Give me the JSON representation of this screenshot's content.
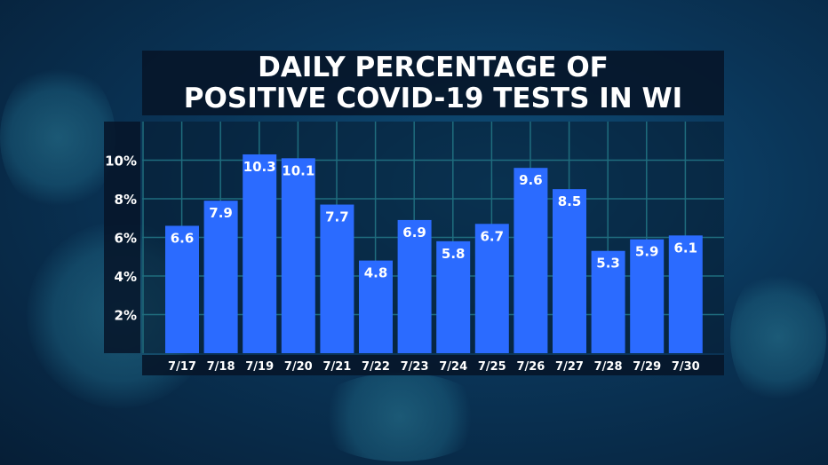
{
  "chart_data": {
    "type": "bar",
    "title_line1": "DAILY PERCENTAGE OF",
    "title_line2": "POSITIVE COVID-19 TESTS IN WI",
    "categories": [
      "7/17",
      "7/18",
      "7/19",
      "7/20",
      "7/21",
      "7/22",
      "7/23",
      "7/24",
      "7/25",
      "7/26",
      "7/27",
      "7/28",
      "7/29",
      "7/30"
    ],
    "values": [
      6.6,
      7.9,
      10.3,
      10.1,
      7.7,
      4.8,
      6.9,
      5.8,
      6.7,
      9.6,
      8.5,
      5.3,
      5.9,
      6.1
    ],
    "y_ticks": [
      2,
      4,
      6,
      8,
      10
    ],
    "y_tick_labels": [
      "2%",
      "4%",
      "6%",
      "8%",
      "10%"
    ],
    "ylim": [
      0,
      12
    ],
    "xlabel": "",
    "ylabel": "",
    "grid": true,
    "bar_color": "#2b6bff",
    "grid_color": "#1f6d7e"
  }
}
